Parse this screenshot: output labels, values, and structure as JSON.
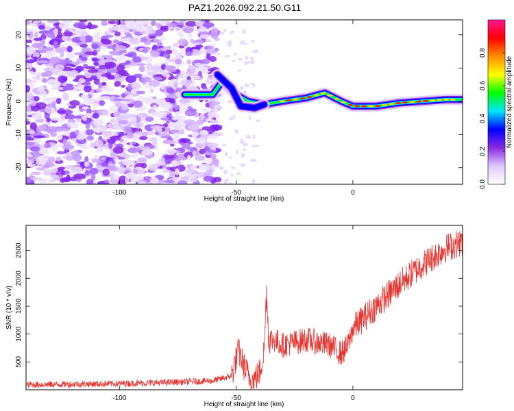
{
  "title": "PAZ1.2026.092.21.50.G11",
  "chart_data": [
    {
      "type": "heatmap",
      "title": "PAZ1.2026.092.21.50.G11",
      "xlabel": "Height of straight line (km)",
      "ylabel": "Frequency (Hz)",
      "xlim": [
        -140,
        47
      ],
      "ylim": [
        -25,
        24.5
      ],
      "xticks": [
        -100,
        -50,
        0
      ],
      "yticks": [
        -20,
        -10,
        0,
        10,
        20
      ],
      "colorbar": {
        "label": "Normalized spectral amplitude",
        "range": [
          0,
          1
        ],
        "ticks": [
          0.0,
          0.2,
          0.4,
          0.6,
          0.8
        ],
        "colormap": [
          "#ffffff",
          "#e0c8ff",
          "#8a2be2",
          "#0000ff",
          "#00e5ff",
          "#00ff00",
          "#ffff00",
          "#ff8c00",
          "#ff0000",
          "#ff1493"
        ]
      },
      "signal_track": [
        {
          "x": -72,
          "y": 2
        },
        {
          "x": -60,
          "y": 2
        },
        {
          "x": -56,
          "y": 6
        },
        {
          "x": -50,
          "y": 2
        },
        {
          "x": -45,
          "y": 0
        },
        {
          "x": -38,
          "y": -1
        },
        {
          "x": -30,
          "y": 0
        },
        {
          "x": -20,
          "y": 1
        },
        {
          "x": -12,
          "y": 2.5
        },
        {
          "x": -5,
          "y": 0
        },
        {
          "x": 0,
          "y": -1.5
        },
        {
          "x": 10,
          "y": -1.5
        },
        {
          "x": 20,
          "y": -0.5
        },
        {
          "x": 30,
          "y": 0
        },
        {
          "x": 40,
          "y": 0.5
        },
        {
          "x": 47,
          "y": 0.5
        }
      ],
      "secondary_track": [
        {
          "x": -58,
          "y": 8
        },
        {
          "x": -52,
          "y": 4
        },
        {
          "x": -48,
          "y": -1.5
        },
        {
          "x": -42,
          "y": -2
        },
        {
          "x": -38,
          "y": -1
        }
      ]
    },
    {
      "type": "line",
      "xlabel": "Height of straight line (km)",
      "ylabel": "SNR (10 * v/v)",
      "xlim": [
        -140,
        47
      ],
      "ylim": [
        0,
        2950
      ],
      "xticks": [
        -100,
        -50,
        0
      ],
      "yticks": [
        500,
        1000,
        1500,
        2000,
        2500
      ],
      "color": "#e8322d",
      "series": [
        {
          "name": "SNR",
          "x": [
            -140,
            -120,
            -100,
            -80,
            -60,
            -52,
            -49,
            -46,
            -43,
            -40,
            -38,
            -37,
            -36,
            -34,
            -30,
            -20,
            -10,
            -5,
            -2,
            0,
            10,
            20,
            30,
            40,
            47
          ],
          "y": [
            90,
            100,
            110,
            130,
            160,
            250,
            700,
            350,
            150,
            300,
            700,
            1800,
            900,
            900,
            800,
            900,
            800,
            650,
            800,
            1100,
            1500,
            1900,
            2250,
            2550,
            2650
          ]
        }
      ]
    }
  ]
}
